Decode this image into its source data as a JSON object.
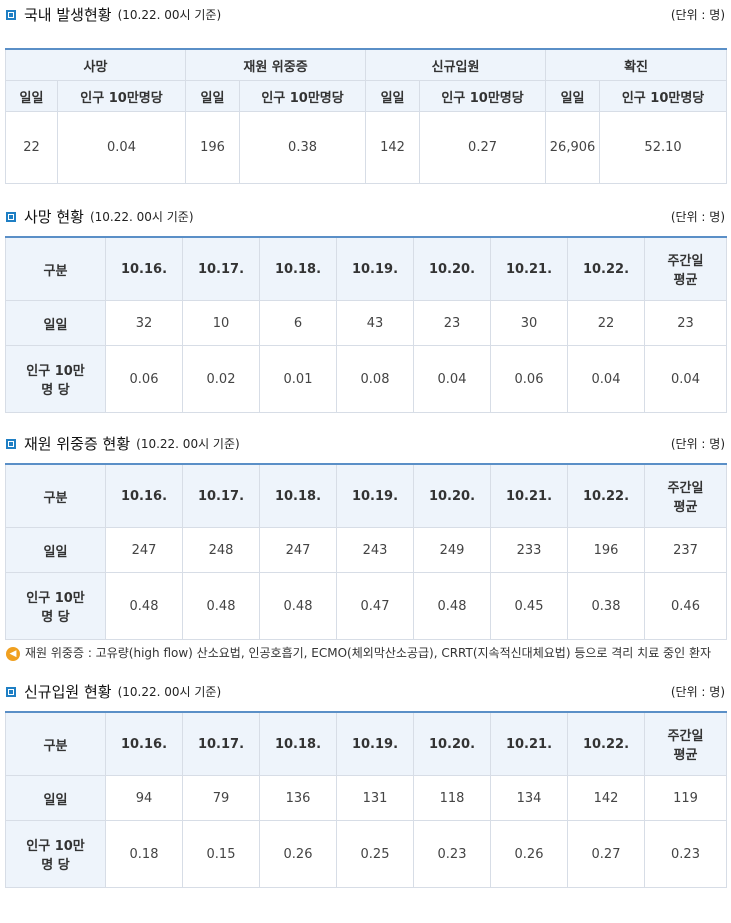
{
  "domestic": {
    "title": "국내 발생현황",
    "subtitle": "(10.22. 00시 기준)",
    "unit": "(단위 : 명)",
    "groups": [
      "사망",
      "재원 위중증",
      "신규입원",
      "확진"
    ],
    "subheaders": [
      "일일",
      "인구 10만명당",
      "일일",
      "인구 10만명당",
      "일일",
      "인구 10만명당",
      "일일",
      "인구 10만명당"
    ],
    "values": [
      "22",
      "0.04",
      "196",
      "0.38",
      "142",
      "0.27",
      "26,906",
      "52.10"
    ]
  },
  "death": {
    "title": "사망 현황",
    "subtitle": "(10.22. 00시 기준)",
    "unit": "(단위 : 명)",
    "header": [
      "구분",
      "10.16.",
      "10.17.",
      "10.18.",
      "10.19.",
      "10.20.",
      "10.21.",
      "10.22.",
      "주간일\n평균"
    ],
    "row_daily_label": "일일",
    "row_per_label": "인구 10만\n명 당",
    "daily": [
      "32",
      "10",
      "6",
      "43",
      "23",
      "30",
      "22",
      "23"
    ],
    "per": [
      "0.06",
      "0.02",
      "0.01",
      "0.08",
      "0.04",
      "0.06",
      "0.04",
      "0.04"
    ]
  },
  "severe": {
    "title": "재원 위중증 현황",
    "subtitle": "(10.22. 00시 기준)",
    "unit": "(단위 : 명)",
    "header": [
      "구분",
      "10.16.",
      "10.17.",
      "10.18.",
      "10.19.",
      "10.20.",
      "10.21.",
      "10.22.",
      "주간일\n평균"
    ],
    "row_daily_label": "일일",
    "row_per_label": "인구 10만\n명 당",
    "daily": [
      "247",
      "248",
      "247",
      "243",
      "249",
      "233",
      "196",
      "237"
    ],
    "per": [
      "0.48",
      "0.48",
      "0.48",
      "0.47",
      "0.48",
      "0.45",
      "0.38",
      "0.46"
    ],
    "note": "재원 위중증 : 고유량(high flow) 산소요법, 인공호흡기, ECMO(체외막산소공급), CRRT(지속적신대체요법) 등으로 격리 치료 중인 환자"
  },
  "admission": {
    "title": "신규입원 현황",
    "subtitle": "(10.22. 00시 기준)",
    "unit": "(단위 : 명)",
    "header": [
      "구분",
      "10.16.",
      "10.17.",
      "10.18.",
      "10.19.",
      "10.20.",
      "10.21.",
      "10.22.",
      "주간일\n평균"
    ],
    "row_daily_label": "일일",
    "row_per_label": "인구 10만\n명 당",
    "daily": [
      "94",
      "79",
      "136",
      "131",
      "118",
      "134",
      "142",
      "119"
    ],
    "per": [
      "0.18",
      "0.15",
      "0.26",
      "0.25",
      "0.23",
      "0.26",
      "0.27",
      "0.23"
    ]
  },
  "colors": {
    "accent": "#1f7fc4",
    "header_bg": "#eef4fb",
    "border": "#d7dde6",
    "note_icon": "#f0a020"
  },
  "icons": {
    "section_marker": "square-bullet-icon",
    "note": "speaker-icon"
  }
}
